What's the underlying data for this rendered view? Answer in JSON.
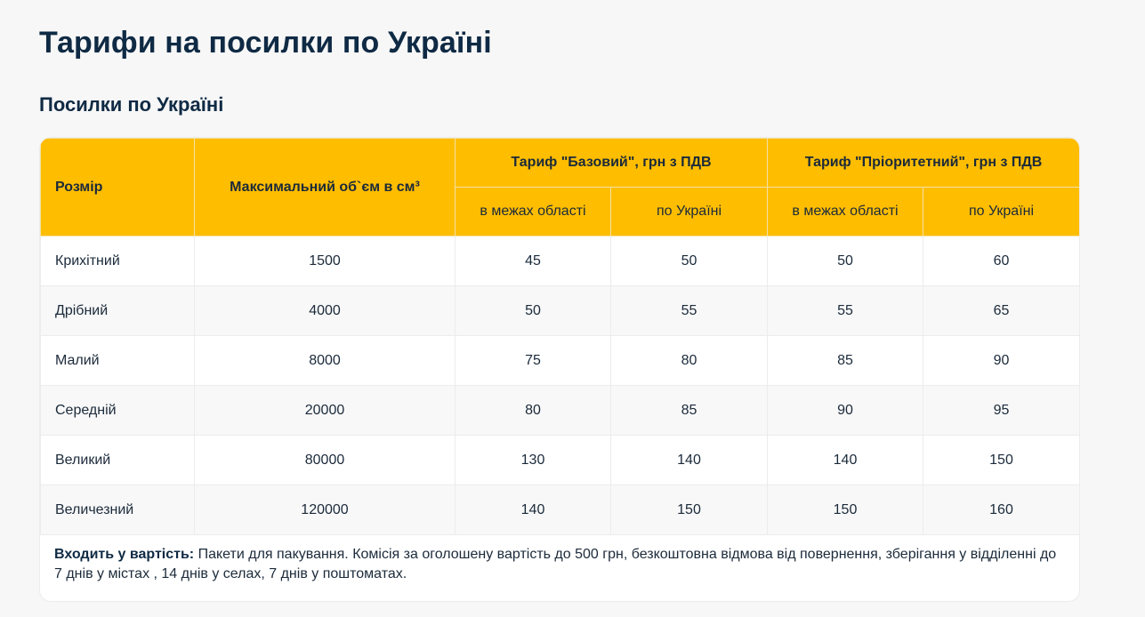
{
  "page": {
    "title": "Тарифи на посилки по Україні",
    "subtitle": "Посилки по Україні"
  },
  "table": {
    "headers": {
      "size": "Розмір",
      "volume": "Максимальний об`єм в см³",
      "tariff_basic": "Тариф \"Базовий\", грн з ПДВ",
      "tariff_priority": "Тариф \"Пріоритетний\", грн з ПДВ",
      "within_region": "в межах області",
      "across_ukraine": "по Україні"
    },
    "rows": [
      {
        "size": "Крихітний",
        "volume": "1500",
        "basic_region": "45",
        "basic_ukraine": "50",
        "priority_region": "50",
        "priority_ukraine": "60"
      },
      {
        "size": "Дрібний",
        "volume": "4000",
        "basic_region": "50",
        "basic_ukraine": "55",
        "priority_region": "55",
        "priority_ukraine": "65"
      },
      {
        "size": "Малий",
        "volume": "8000",
        "basic_region": "75",
        "basic_ukraine": "80",
        "priority_region": "85",
        "priority_ukraine": "90"
      },
      {
        "size": "Середній",
        "volume": "20000",
        "basic_region": "80",
        "basic_ukraine": "85",
        "priority_region": "90",
        "priority_ukraine": "95"
      },
      {
        "size": "Великий",
        "volume": "80000",
        "basic_region": "130",
        "basic_ukraine": "140",
        "priority_region": "140",
        "priority_ukraine": "150"
      },
      {
        "size": "Величезний",
        "volume": "120000",
        "basic_region": "140",
        "basic_ukraine": "150",
        "priority_region": "150",
        "priority_ukraine": "160"
      }
    ]
  },
  "note": {
    "label": "Входить у вартість:",
    "text": " Пакети для пакування. Комісія за оголошену вартість до 500 грн, безкоштовна відмова від повернення, зберігання у відділенні до 7 днів у містах , 14 днів у селах, 7 днів у поштоматах."
  },
  "colors": {
    "header_bg": "#ffbd00",
    "title": "#0f2a44",
    "row_alt": "#f8f8f8"
  }
}
